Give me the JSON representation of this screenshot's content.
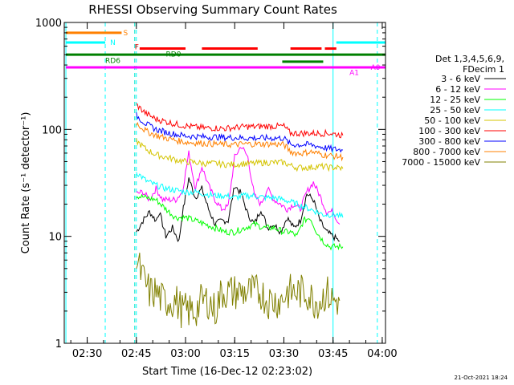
{
  "chart_data": {
    "type": "line",
    "title": "RHESSI Observing Summary Count Rates",
    "xlabel": "Start Time (16-Dec-12 02:23:02)",
    "ylabel": "Count Rate (s⁻¹ detector⁻¹)",
    "yscale": "log",
    "ylim": [
      1,
      1000
    ],
    "xlim_minutes": [
      143,
      241
    ],
    "x_ticks": [
      {
        "t": 150,
        "label": "02:30"
      },
      {
        "t": 165,
        "label": "02:45"
      },
      {
        "t": 180,
        "label": "03:00"
      },
      {
        "t": 195,
        "label": "03:15"
      },
      {
        "t": 210,
        "label": "03:30"
      },
      {
        "t": 225,
        "label": "03:45"
      },
      {
        "t": 240,
        "label": "04:00"
      }
    ],
    "y_ticks": [
      {
        "v": 1,
        "label": "1"
      },
      {
        "v": 10,
        "label": "10"
      },
      {
        "v": 100,
        "label": "100"
      },
      {
        "v": 1000,
        "label": "1000"
      }
    ],
    "legend_header": [
      "Det 1,3,4,5,6,9,",
      "FDecim 1"
    ],
    "series": [
      {
        "name": "3 - 6 keV",
        "color": "#000000",
        "x": [
          165,
          167,
          169,
          171,
          172,
          174,
          176,
          178,
          179,
          181,
          183,
          185,
          187,
          189,
          191,
          193,
          195,
          197,
          199,
          201,
          203,
          205,
          207,
          209,
          211,
          213,
          215,
          217,
          219,
          221,
          223,
          225,
          227
        ],
        "values": [
          11,
          14,
          17,
          14,
          17,
          10,
          12,
          9,
          16,
          35,
          23,
          28,
          18,
          13,
          14,
          14,
          30,
          25,
          16,
          13,
          18,
          12,
          13,
          11,
          15,
          12,
          14,
          25,
          22,
          14,
          11,
          10,
          9
        ]
      },
      {
        "name": "6 - 12 keV",
        "color": "#ff00ff",
        "x": [
          165,
          167,
          169,
          171,
          173,
          175,
          177,
          179,
          181,
          183,
          185,
          187,
          189,
          191,
          193,
          195,
          197,
          199,
          201,
          203,
          205,
          207,
          209,
          211,
          213,
          215,
          217,
          219,
          221,
          223,
          225,
          227
        ],
        "values": [
          25,
          26,
          22,
          28,
          22,
          22,
          22,
          26,
          60,
          28,
          45,
          30,
          22,
          18,
          19,
          55,
          70,
          55,
          24,
          20,
          28,
          22,
          20,
          18,
          20,
          18,
          26,
          32,
          24,
          17,
          17,
          13
        ]
      },
      {
        "name": "12 - 25 keV",
        "color": "#00ff00",
        "x": [
          165,
          168,
          171,
          174,
          177,
          180,
          183,
          186,
          189,
          192,
          195,
          198,
          201,
          204,
          207,
          210,
          212,
          214,
          216,
          218,
          220,
          222,
          224,
          226,
          228
        ],
        "values": [
          24,
          23,
          22,
          18,
          15,
          15,
          14,
          13,
          12,
          11,
          11,
          12,
          13,
          12,
          12,
          11,
          11,
          10,
          14,
          15,
          11,
          9,
          8,
          8,
          8
        ]
      },
      {
        "name": "25 - 50 keV",
        "color": "#00ffff",
        "x": [
          165,
          168,
          171,
          174,
          177,
          180,
          183,
          186,
          189,
          192,
          195,
          198,
          201,
          204,
          207,
          210,
          212,
          214,
          216,
          218,
          220,
          222,
          224,
          226,
          228
        ],
        "values": [
          40,
          33,
          30,
          28,
          27,
          26,
          26,
          25,
          24,
          24,
          23,
          24,
          24,
          23,
          23,
          22,
          21,
          20,
          19,
          18,
          17,
          16,
          16,
          16,
          15
        ]
      },
      {
        "name": "50 - 100 keV",
        "color": "#d4c400",
        "x": [
          165,
          168,
          171,
          174,
          177,
          180,
          183,
          186,
          189,
          192,
          195,
          198,
          201,
          204,
          207,
          210,
          212,
          214,
          216,
          218,
          220,
          222,
          224,
          226,
          228
        ],
        "values": [
          78,
          65,
          58,
          55,
          52,
          50,
          49,
          48,
          48,
          47,
          47,
          48,
          48,
          49,
          49,
          49,
          46,
          44,
          44,
          44,
          45,
          45,
          44,
          44,
          43
        ]
      },
      {
        "name": "100 - 300 keV",
        "color": "#ff0000",
        "x": [
          165,
          168,
          171,
          174,
          177,
          180,
          183,
          186,
          189,
          192,
          195,
          198,
          201,
          204,
          207,
          210,
          212,
          214,
          216,
          218,
          220,
          222,
          224,
          226,
          228
        ],
        "values": [
          170,
          140,
          125,
          118,
          112,
          108,
          105,
          103,
          103,
          102,
          104,
          106,
          106,
          107,
          107,
          107,
          92,
          92,
          92,
          92,
          92,
          92,
          92,
          90,
          88
        ]
      },
      {
        "name": "300 - 800 keV",
        "color": "#0000ff",
        "x": [
          165,
          168,
          171,
          174,
          177,
          180,
          183,
          186,
          189,
          192,
          195,
          198,
          201,
          204,
          207,
          210,
          212,
          214,
          216,
          218,
          220,
          222,
          224,
          226,
          228
        ],
        "values": [
          135,
          112,
          100,
          94,
          90,
          87,
          86,
          85,
          85,
          84,
          84,
          83,
          83,
          83,
          83,
          83,
          72,
          72,
          72,
          72,
          70,
          68,
          66,
          65,
          64
        ]
      },
      {
        "name": "800 - 7000 keV",
        "color": "#ff8000",
        "x": [
          165,
          168,
          171,
          174,
          177,
          180,
          183,
          186,
          189,
          192,
          195,
          198,
          201,
          204,
          207,
          210,
          212,
          214,
          216,
          218,
          220,
          222,
          224,
          226,
          228
        ],
        "values": [
          115,
          96,
          88,
          83,
          79,
          76,
          75,
          74,
          73,
          72,
          72,
          73,
          73,
          73,
          73,
          72,
          62,
          60,
          60,
          62,
          60,
          58,
          57,
          56,
          55
        ]
      },
      {
        "name": "7000 - 15000 keV",
        "color": "#808000",
        "x": [
          165,
          167,
          169,
          171,
          173,
          175,
          177,
          179,
          181,
          183,
          185,
          187,
          189,
          191,
          193,
          195,
          197,
          199,
          201,
          203,
          205,
          207,
          209,
          211,
          213,
          215,
          217,
          219,
          221,
          223,
          225,
          227
        ],
        "values": [
          6,
          4,
          3,
          3,
          2.5,
          2.5,
          2.5,
          2,
          2,
          2,
          2.5,
          2.5,
          2,
          3,
          3,
          3,
          3,
          3,
          3,
          3,
          2.5,
          2.5,
          2.5,
          3,
          3,
          3,
          3,
          2.5,
          2.5,
          3,
          2.5,
          2.5
        ]
      }
    ],
    "vertical_markers": [
      {
        "t": 143.5,
        "color": "#00ffff",
        "style": "solid"
      },
      {
        "t": 164.5,
        "color": "#ff8000",
        "style": "dashed"
      },
      {
        "t": 164.5,
        "color": "#00ffff",
        "style": "dashed"
      },
      {
        "t": 164.5,
        "color": "#00ffff",
        "style": "dashed2"
      },
      {
        "t": 155.5,
        "color": "#00ffff",
        "style": "dashed"
      },
      {
        "t": 225,
        "color": "#00ffff",
        "style": "solid"
      },
      {
        "t": 238.5,
        "color": "#00ffff",
        "style": "dashed"
      }
    ],
    "annotations": [
      {
        "label": "S",
        "color": "#ff8000"
      },
      {
        "label": "N",
        "color": "#00ffff"
      },
      {
        "label": "F",
        "color": "#ff0000"
      },
      {
        "label": "RD0",
        "color": "#008000"
      },
      {
        "label": "RD6",
        "color": "#008000"
      },
      {
        "label": "A1",
        "color": "#ff00ff"
      },
      {
        "label": "A0",
        "color": "#ff00ff"
      }
    ],
    "flag_bars": [
      {
        "label": "S",
        "color": "#ff8000",
        "y": 800,
        "segments": [
          [
            143.5,
            160.5
          ]
        ]
      },
      {
        "label": "N",
        "color": "#00ffff",
        "y": 650,
        "segments": [
          [
            143.5,
            155.5
          ],
          [
            226,
            241
          ]
        ]
      },
      {
        "label": "F",
        "color": "#ff0000",
        "y": 570,
        "segments": [
          [
            166,
            180
          ],
          [
            185,
            202
          ],
          [
            212,
            221.5
          ],
          [
            222.5,
            226
          ]
        ]
      },
      {
        "label": "RD0",
        "color": "#008000",
        "y": 500,
        "segments": [
          [
            143.5,
            241
          ]
        ]
      },
      {
        "label": "RD6",
        "color": "#008000",
        "y": 430,
        "segments": [
          [
            209.5,
            222
          ]
        ]
      },
      {
        "label": "A1",
        "color": "#ff00ff",
        "y": 380,
        "segments": [
          [
            143.5,
            241
          ]
        ]
      }
    ]
  },
  "footer": {
    "date_stamp": "21-Oct-2021 18:24"
  }
}
